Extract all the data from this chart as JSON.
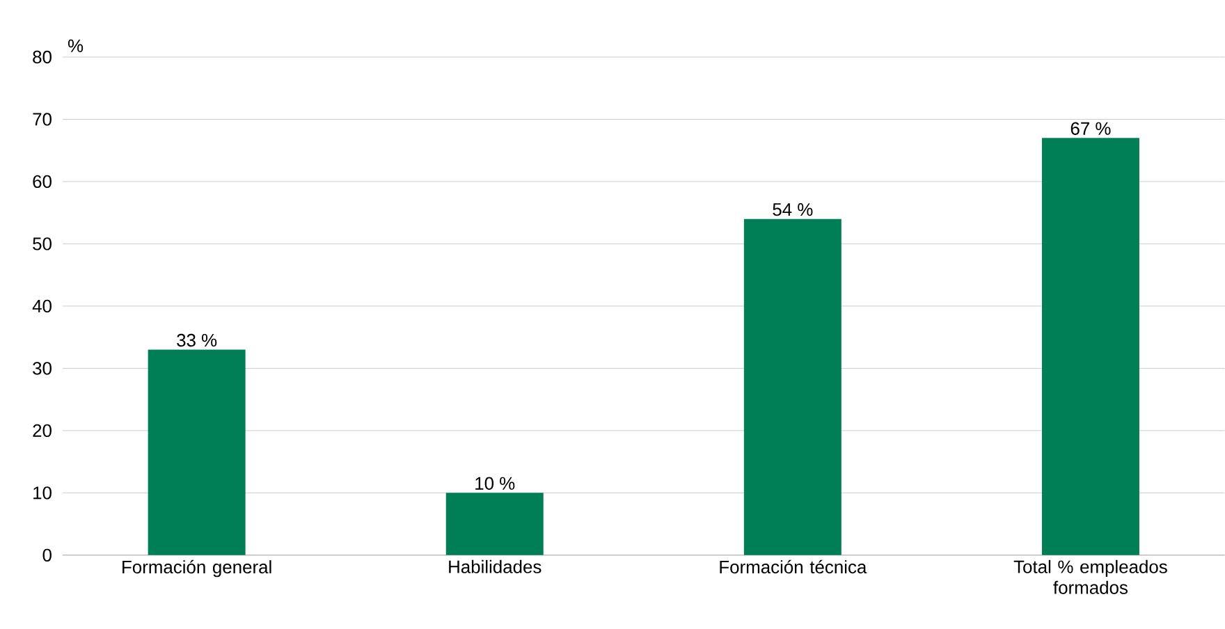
{
  "chart_data": {
    "type": "bar",
    "ylabel": "%",
    "categories": [
      "Formación general",
      "Habilidades",
      "Formación técnica",
      "Total % empleados formados"
    ],
    "values": [
      33,
      10,
      54,
      67
    ],
    "value_labels": [
      "33 %",
      "10 %",
      "54 %",
      "67 %"
    ],
    "color": "#007f56",
    "ylim": [
      0,
      80
    ],
    "yticks": [
      0,
      10,
      20,
      30,
      40,
      50,
      60,
      70,
      80
    ],
    "grid": "y"
  }
}
